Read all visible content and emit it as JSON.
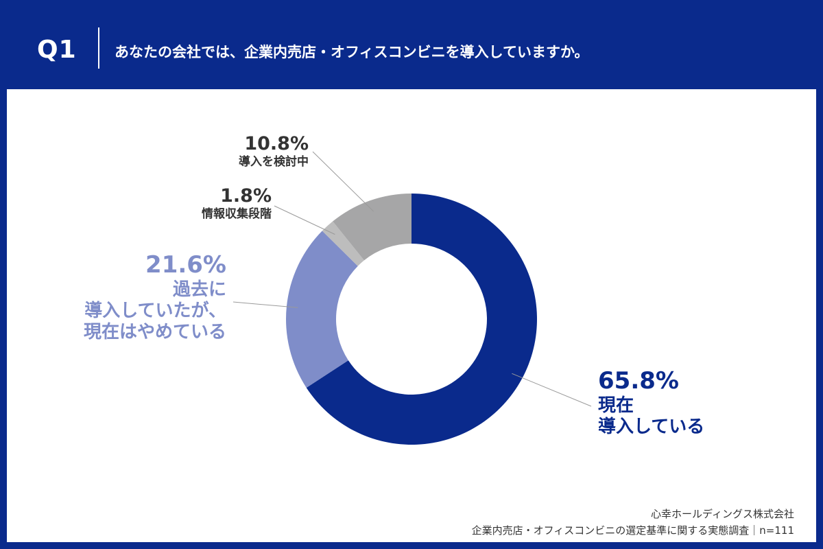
{
  "header": {
    "q_label": "Q1",
    "question": "あなたの会社では、企業内売店・オフィスコンビニを導入していますか。"
  },
  "colors": {
    "background": "#0a2a8c",
    "series": [
      "#0a2a8c",
      "#7f8dc9",
      "#bdbdbd",
      "#a6a6a7"
    ]
  },
  "chart_data": {
    "type": "pie",
    "donut": true,
    "start": "top",
    "direction": "clockwise",
    "slices": [
      {
        "value": 65.8,
        "label_pct": "65.8%",
        "label_lines": [
          "現在",
          "導入している"
        ]
      },
      {
        "value": 21.6,
        "label_pct": "21.6%",
        "label_lines": [
          "過去に",
          "導入していたが、",
          "現在はやめている"
        ]
      },
      {
        "value": 1.8,
        "label_pct": "1.8%",
        "label_lines": [
          "情報収集段階"
        ]
      },
      {
        "value": 10.8,
        "label_pct": "10.8%",
        "label_lines": [
          "導入を検討中"
        ]
      }
    ]
  },
  "footer": {
    "company": "心幸ホールディングス株式会社",
    "survey": "企業内売店・オフィスコンビニの選定基準に関する実態調査｜n=111"
  }
}
